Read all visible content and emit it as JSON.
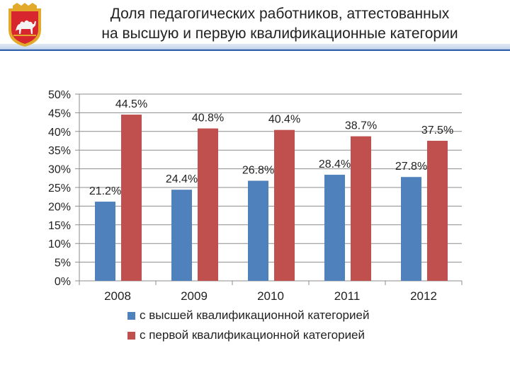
{
  "slide": {
    "title_line1": "Доля педагогических работников, аттестованных",
    "title_line2": "на высшую и первую квалификационные категории"
  },
  "emblem": {
    "icon": "chelyabinsk-coat-of-arms-icon",
    "colors": {
      "shield": "#d7262e",
      "frame": "#e2a92b",
      "camel": "#f4f4f4"
    }
  },
  "chart_data": {
    "type": "bar",
    "categories": [
      "2008",
      "2009",
      "2010",
      "2011",
      "2012"
    ],
    "series": [
      {
        "name": "с высшей квалификационной категорией",
        "color": "#4f81bd",
        "values": [
          21.2,
          24.4,
          26.8,
          28.4,
          27.8
        ],
        "labels": [
          "21.2%",
          "24.4%",
          "26.8%",
          "28.4%",
          "27.8%"
        ]
      },
      {
        "name": "с первой квалификационной категорией",
        "color": "#c0504d",
        "values": [
          44.5,
          40.8,
          40.4,
          38.7,
          37.5
        ],
        "labels": [
          "44.5%",
          "40.8%",
          "40.4%",
          "38.7%",
          "37.5%"
        ]
      }
    ],
    "ylim": [
      0,
      50
    ],
    "yticks": [
      "0%",
      "5%",
      "10%",
      "15%",
      "20%",
      "25%",
      "30%",
      "35%",
      "40%",
      "45%",
      "50%"
    ],
    "grid": true,
    "legend_position": "bottom"
  }
}
